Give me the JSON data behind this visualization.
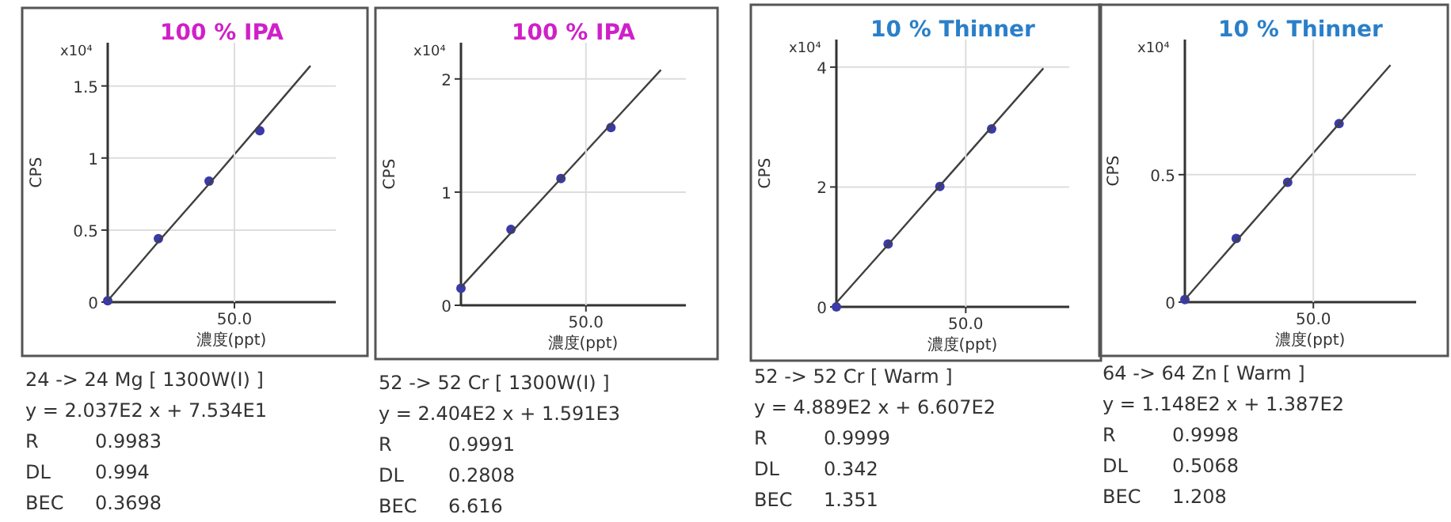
{
  "chart_data": [
    {
      "type": "scatter",
      "title": "100 % IPA",
      "ylabel": "CPS",
      "xlabel": "濃度(ppt)",
      "categories": [
        null,
        null,
        null,
        null,
        null
      ],
      "ylim": [
        0,
        1.8
      ],
      "yticks": [
        0,
        0.5,
        1,
        1.5
      ],
      "grid": "y",
      "series": [
        {
          "color": "#3a3aa8",
          "marker": "circle",
          "values": [
            0.01,
            0.44,
            0.84,
            1.19,
            null
          ]
        },
        {
          "type": "line",
          "color": "#404040",
          "values": [
            0.01,
            0.42,
            0.82,
            1.23,
            1.64
          ]
        }
      ],
      "annotations": [
        "x10⁴",
        "50.0",
        "24 -> 24 Mg [ 1300W(I) ]",
        "y = 2.037E2 x + 7.534E1",
        "R",
        "0.9983",
        "DL",
        "0.994",
        "BEC",
        "0.3698"
      ]
    },
    {
      "type": "scatter",
      "title": "100 % IPA",
      "ylabel": "CPS",
      "xlabel": "濃度(ppt)",
      "categories": [
        null,
        null,
        null,
        null,
        null
      ],
      "ylim": [
        0,
        2.32
      ],
      "yticks": [
        0,
        1,
        2
      ],
      "grid": "y",
      "series": [
        {
          "color": "#3a3aa8",
          "marker": "circle",
          "values": [
            0.15,
            0.67,
            1.12,
            1.57,
            null
          ]
        },
        {
          "type": "line",
          "color": "#404040",
          "values": [
            0.16,
            0.64,
            1.12,
            1.6,
            2.08
          ]
        }
      ],
      "annotations": [
        "x10⁴",
        "50.0",
        "52 -> 52 Cr [ 1300W(I) ]",
        "y = 2.404E2 x + 1.591E3",
        "R",
        "0.9991",
        "DL",
        "0.2808",
        "BEC",
        "6.616"
      ]
    },
    {
      "type": "scatter",
      "title": "10 % Thinner",
      "ylabel": "CPS",
      "xlabel": "濃度(ppt)",
      "categories": [
        null,
        null,
        null,
        null,
        null
      ],
      "ylim": [
        0,
        4.46
      ],
      "yticks": [
        0,
        2,
        4
      ],
      "grid": "y",
      "series": [
        {
          "color": "#3a3aa8",
          "marker": "circle",
          "values": [
            0.0,
            1.05,
            2.01,
            2.97,
            null
          ]
        },
        {
          "type": "line",
          "color": "#404040",
          "values": [
            0.07,
            1.04,
            2.02,
            3.0,
            3.98
          ]
        }
      ],
      "annotations": [
        "x10⁴",
        "50.0",
        "52 -> 52 Cr [ Warm ]",
        "y = 4.889E2 x + 6.607E2",
        "R",
        "0.9999",
        "DL",
        "0.342",
        "BEC",
        "1.351"
      ]
    },
    {
      "type": "scatter",
      "title": "10 % Thinner",
      "ylabel": "CPS",
      "xlabel": "濃度(ppt)",
      "categories": [
        null,
        null,
        null,
        null,
        null
      ],
      "ylim": [
        0,
        1.03
      ],
      "yticks": [
        0,
        0.5
      ],
      "grid": "y",
      "series": [
        {
          "color": "#3a3aa8",
          "marker": "circle",
          "values": [
            0.01,
            0.25,
            0.47,
            0.7,
            null
          ]
        },
        {
          "type": "line",
          "color": "#404040",
          "values": [
            0.01,
            0.24,
            0.47,
            0.7,
            0.93
          ]
        }
      ],
      "annotations": [
        "x10⁴",
        "50.0",
        "64 -> 64 Zn [ Warm ]",
        "y = 1.148E2 x + 1.387E2",
        "R",
        "0.9998",
        "DL",
        "0.5068",
        "BEC",
        "1.208"
      ]
    }
  ]
}
